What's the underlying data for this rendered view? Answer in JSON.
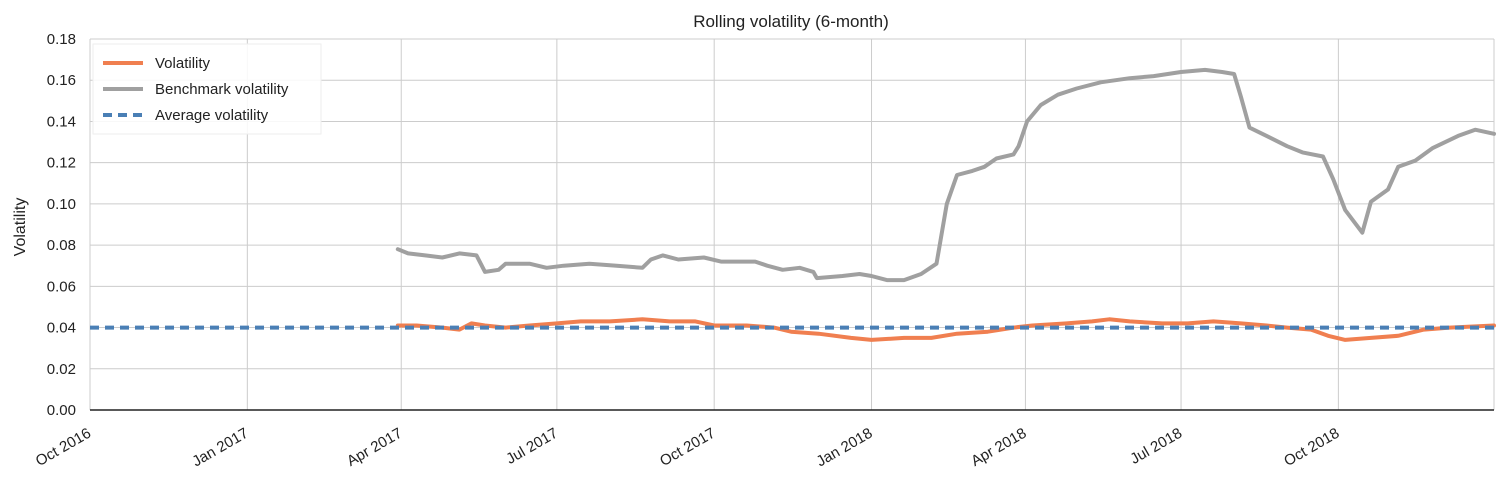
{
  "chart_data": {
    "type": "line",
    "title": "Rolling volatility (6-month)",
    "xlabel": "",
    "ylabel": "Volatility",
    "xlim": [
      "2016-10-01",
      "2018-12-31"
    ],
    "ylim": [
      0,
      0.18
    ],
    "grid": true,
    "legend_position": "top-left",
    "y_ticks": [
      "0.00",
      "0.02",
      "0.04",
      "0.06",
      "0.08",
      "0.10",
      "0.12",
      "0.14",
      "0.16",
      "0.18"
    ],
    "x_ticks": [
      {
        "date": "2016-10-01",
        "label": "Oct 2016"
      },
      {
        "date": "2017-01-01",
        "label": "Jan 2017"
      },
      {
        "date": "2017-04-01",
        "label": "Apr 2017"
      },
      {
        "date": "2017-07-01",
        "label": "Jul 2017"
      },
      {
        "date": "2017-10-01",
        "label": "Oct 2017"
      },
      {
        "date": "2018-01-01",
        "label": "Jan 2018"
      },
      {
        "date": "2018-04-01",
        "label": "Apr 2018"
      },
      {
        "date": "2018-07-01",
        "label": "Jul 2018"
      },
      {
        "date": "2018-10-01",
        "label": "Oct 2018"
      }
    ],
    "series": [
      {
        "name": "Volatility",
        "color": "#f07f50",
        "style": "solid",
        "points": [
          [
            "2017-03-30",
            0.041
          ],
          [
            "2017-04-10",
            0.041
          ],
          [
            "2017-04-25",
            0.04
          ],
          [
            "2017-05-05",
            0.039
          ],
          [
            "2017-05-12",
            0.042
          ],
          [
            "2017-05-20",
            0.041
          ],
          [
            "2017-06-01",
            0.04
          ],
          [
            "2017-06-15",
            0.041
          ],
          [
            "2017-07-01",
            0.042
          ],
          [
            "2017-07-15",
            0.043
          ],
          [
            "2017-08-01",
            0.043
          ],
          [
            "2017-08-20",
            0.044
          ],
          [
            "2017-09-05",
            0.043
          ],
          [
            "2017-09-20",
            0.043
          ],
          [
            "2017-10-01",
            0.041
          ],
          [
            "2017-10-20",
            0.041
          ],
          [
            "2017-11-05",
            0.04
          ],
          [
            "2017-11-15",
            0.038
          ],
          [
            "2017-12-01",
            0.037
          ],
          [
            "2017-12-20",
            0.035
          ],
          [
            "2018-01-01",
            0.034
          ],
          [
            "2018-01-20",
            0.035
          ],
          [
            "2018-02-05",
            0.035
          ],
          [
            "2018-02-20",
            0.037
          ],
          [
            "2018-03-10",
            0.038
          ],
          [
            "2018-03-25",
            0.04
          ],
          [
            "2018-04-05",
            0.041
          ],
          [
            "2018-04-25",
            0.042
          ],
          [
            "2018-05-10",
            0.043
          ],
          [
            "2018-05-20",
            0.044
          ],
          [
            "2018-06-01",
            0.043
          ],
          [
            "2018-06-20",
            0.042
          ],
          [
            "2018-07-05",
            0.042
          ],
          [
            "2018-07-20",
            0.043
          ],
          [
            "2018-08-05",
            0.042
          ],
          [
            "2018-08-20",
            0.041
          ],
          [
            "2018-09-01",
            0.04
          ],
          [
            "2018-09-15",
            0.039
          ],
          [
            "2018-09-25",
            0.036
          ],
          [
            "2018-10-05",
            0.034
          ],
          [
            "2018-10-20",
            0.035
          ],
          [
            "2018-11-05",
            0.036
          ],
          [
            "2018-11-20",
            0.039
          ],
          [
            "2018-12-05",
            0.04
          ],
          [
            "2018-12-31",
            0.041
          ]
        ]
      },
      {
        "name": "Benchmark volatility",
        "color": "#a0a0a0",
        "style": "solid",
        "points": [
          [
            "2017-03-30",
            0.078
          ],
          [
            "2017-04-05",
            0.076
          ],
          [
            "2017-04-15",
            0.075
          ],
          [
            "2017-04-25",
            0.074
          ],
          [
            "2017-05-05",
            0.076
          ],
          [
            "2017-05-15",
            0.075
          ],
          [
            "2017-05-20",
            0.067
          ],
          [
            "2017-05-28",
            0.068
          ],
          [
            "2017-06-01",
            0.071
          ],
          [
            "2017-06-15",
            0.071
          ],
          [
            "2017-06-25",
            0.069
          ],
          [
            "2017-07-05",
            0.07
          ],
          [
            "2017-07-20",
            0.071
          ],
          [
            "2017-08-05",
            0.07
          ],
          [
            "2017-08-20",
            0.069
          ],
          [
            "2017-08-25",
            0.073
          ],
          [
            "2017-09-01",
            0.075
          ],
          [
            "2017-09-10",
            0.073
          ],
          [
            "2017-09-25",
            0.074
          ],
          [
            "2017-10-05",
            0.072
          ],
          [
            "2017-10-25",
            0.072
          ],
          [
            "2017-11-01",
            0.07
          ],
          [
            "2017-11-10",
            0.068
          ],
          [
            "2017-11-20",
            0.069
          ],
          [
            "2017-11-28",
            0.067
          ],
          [
            "2017-11-30",
            0.064
          ],
          [
            "2017-12-15",
            0.065
          ],
          [
            "2017-12-25",
            0.066
          ],
          [
            "2018-01-01",
            0.065
          ],
          [
            "2018-01-10",
            0.063
          ],
          [
            "2018-01-20",
            0.063
          ],
          [
            "2018-01-30",
            0.066
          ],
          [
            "2018-02-08",
            0.071
          ],
          [
            "2018-02-14",
            0.1
          ],
          [
            "2018-02-20",
            0.114
          ],
          [
            "2018-03-01",
            0.116
          ],
          [
            "2018-03-08",
            0.118
          ],
          [
            "2018-03-15",
            0.122
          ],
          [
            "2018-03-25",
            0.124
          ],
          [
            "2018-03-28",
            0.128
          ],
          [
            "2018-04-02",
            0.14
          ],
          [
            "2018-04-10",
            0.148
          ],
          [
            "2018-04-20",
            0.153
          ],
          [
            "2018-05-01",
            0.156
          ],
          [
            "2018-05-15",
            0.159
          ],
          [
            "2018-06-01",
            0.161
          ],
          [
            "2018-06-15",
            0.162
          ],
          [
            "2018-07-01",
            0.164
          ],
          [
            "2018-07-15",
            0.165
          ],
          [
            "2018-07-25",
            0.164
          ],
          [
            "2018-08-01",
            0.163
          ],
          [
            "2018-08-05",
            0.152
          ],
          [
            "2018-08-10",
            0.137
          ],
          [
            "2018-08-20",
            0.133
          ],
          [
            "2018-09-01",
            0.128
          ],
          [
            "2018-09-10",
            0.125
          ],
          [
            "2018-09-22",
            0.123
          ],
          [
            "2018-09-28",
            0.112
          ],
          [
            "2018-10-05",
            0.097
          ],
          [
            "2018-10-15",
            0.086
          ],
          [
            "2018-10-20",
            0.101
          ],
          [
            "2018-10-30",
            0.107
          ],
          [
            "2018-11-05",
            0.118
          ],
          [
            "2018-11-15",
            0.121
          ],
          [
            "2018-11-25",
            0.127
          ],
          [
            "2018-12-10",
            0.133
          ],
          [
            "2018-12-20",
            0.136
          ],
          [
            "2018-12-31",
            0.134
          ]
        ]
      },
      {
        "name": "Average volatility",
        "color": "#4a7fb5",
        "style": "dashed",
        "points": [
          [
            "2016-10-01",
            0.04
          ],
          [
            "2018-12-31",
            0.04
          ]
        ]
      }
    ]
  }
}
